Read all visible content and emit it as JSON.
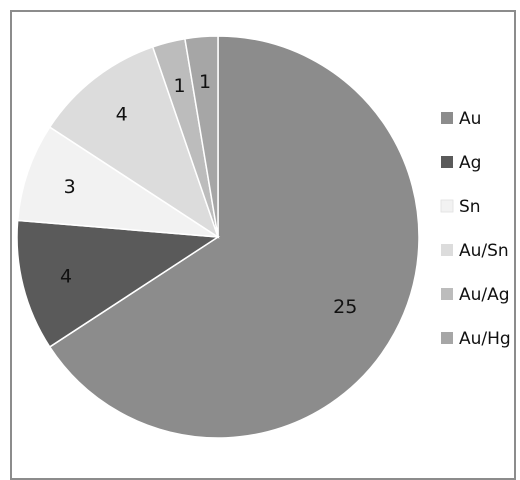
{
  "chart_data": {
    "type": "pie",
    "categories": [
      "Au",
      "Ag",
      "Sn",
      "Au/Sn",
      "Au/Ag",
      "Au/Hg"
    ],
    "values": [
      25,
      4,
      3,
      4,
      1,
      1
    ],
    "colors": [
      "#8c8c8c",
      "#5a5a5a",
      "#f2f2f2",
      "#dcdcdc",
      "#bcbcbc",
      "#a6a6a6"
    ],
    "data_labels": [
      "25",
      "4",
      "3",
      "4",
      "1",
      "1"
    ],
    "legend_position": "right",
    "title": ""
  }
}
